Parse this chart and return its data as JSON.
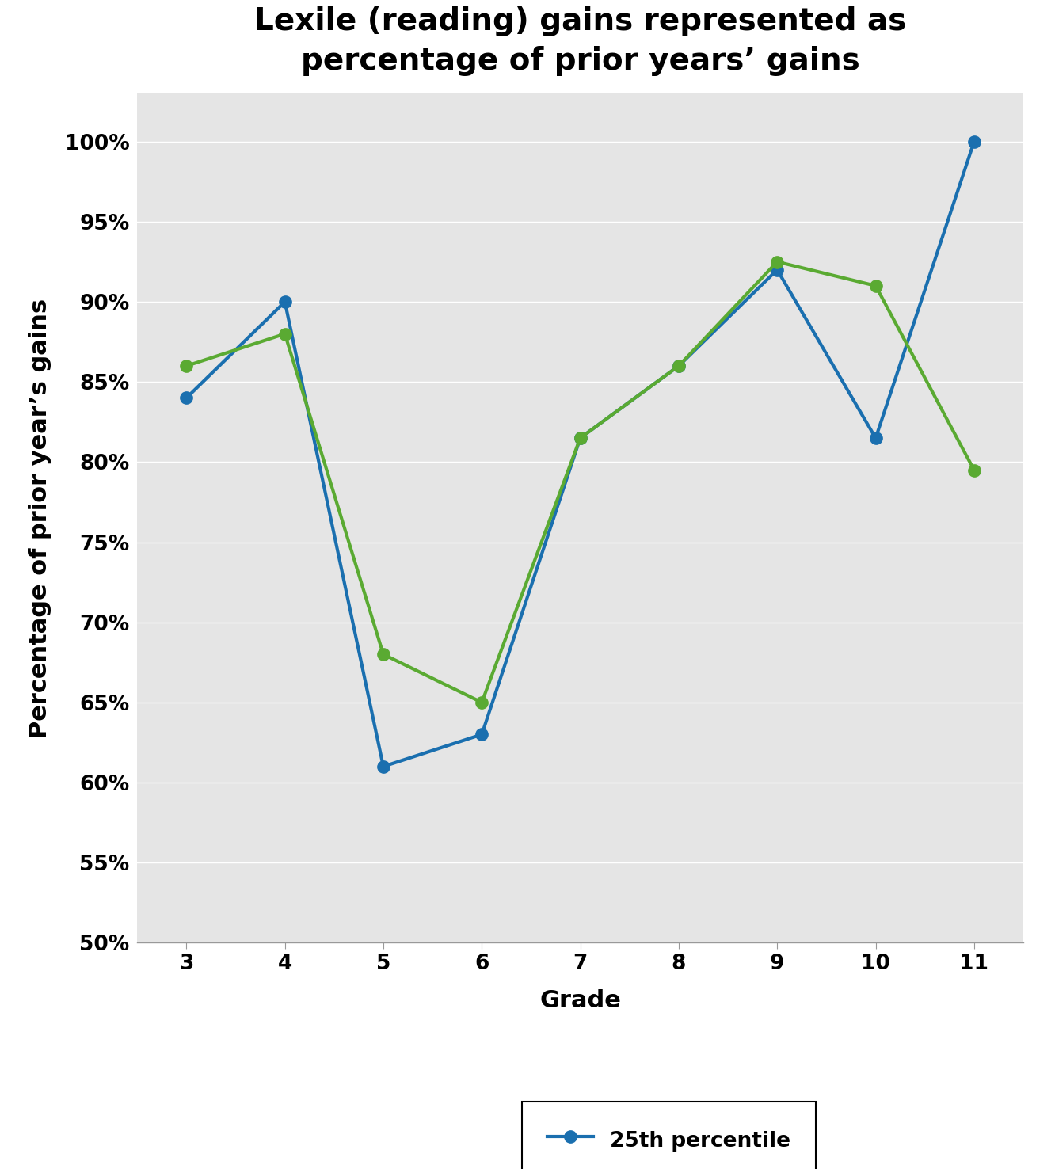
{
  "title": "Lexile (reading) gains represented as\npercentage of prior years’ gains",
  "xlabel": "Grade",
  "ylabel": "Percentage of prior year’s gains",
  "grades": [
    3,
    4,
    5,
    6,
    7,
    8,
    9,
    10,
    11
  ],
  "p25": [
    0.84,
    0.9,
    0.61,
    0.63,
    0.815,
    0.86,
    0.92,
    0.815,
    1.0
  ],
  "p75": [
    0.86,
    0.88,
    0.68,
    0.65,
    0.815,
    0.86,
    0.925,
    0.91,
    0.795
  ],
  "color_25": "#1a6faf",
  "color_75": "#5aaa32",
  "ylim_min": 0.5,
  "ylim_max": 1.03,
  "yticks": [
    0.5,
    0.55,
    0.6,
    0.65,
    0.7,
    0.75,
    0.8,
    0.85,
    0.9,
    0.95,
    1.0
  ],
  "bg_color": "#e5e5e5",
  "title_fontsize": 28,
  "label_fontsize": 22,
  "tick_fontsize": 19,
  "legend_fontsize": 19,
  "marker_size": 11,
  "line_width": 3.0
}
